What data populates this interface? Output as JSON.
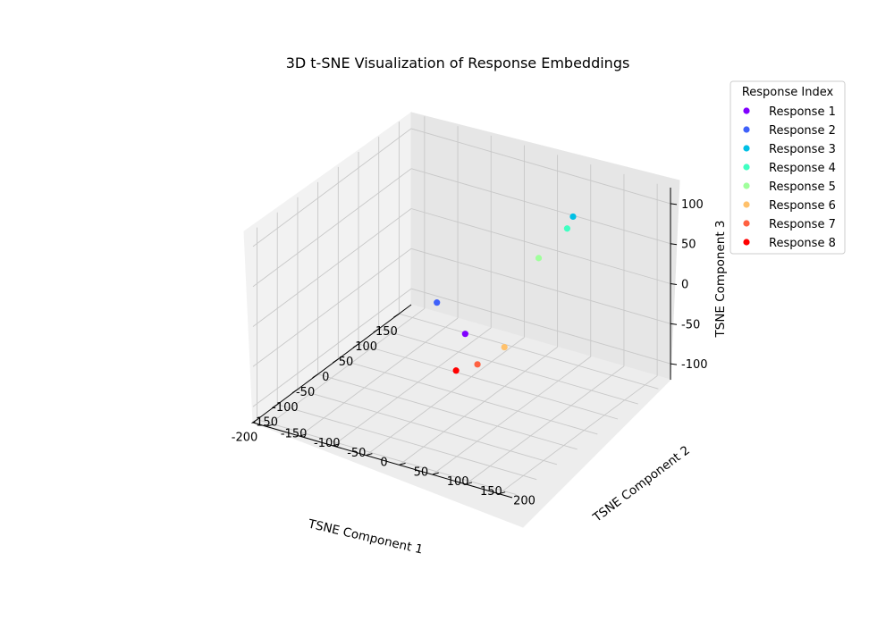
{
  "chart_data": {
    "type": "scatter",
    "projection": "3d",
    "title": "3D t-SNE Visualization of Response Embeddings",
    "xlabel": "TSNE Component 1",
    "ylabel": "TSNE Component 2",
    "zlabel": "TSNE Component 3",
    "xlim": [
      -210,
      180
    ],
    "ylim": [
      -170,
      220
    ],
    "zlim": [
      -120,
      120
    ],
    "xticks": [
      "-200",
      "-150",
      "-100",
      "-50",
      "0",
      "50",
      "100",
      "150"
    ],
    "yticks": [
      "-150",
      "-100",
      "-50",
      "0",
      "50",
      "100",
      "150",
      "200"
    ],
    "zticks": [
      "-100",
      "-50",
      "0",
      "50",
      "100"
    ],
    "grid": true,
    "legend": {
      "title": "Response Index",
      "placement": "upper-right-outside"
    },
    "series": [
      {
        "name": "Response 1",
        "color": "#8000ff",
        "x": 100,
        "y": -40,
        "z": -95
      },
      {
        "name": "Response 2",
        "color": "#3f61fa",
        "x": -150,
        "y": 70,
        "z": 65
      },
      {
        "name": "Response 3",
        "color": "#00c0e5",
        "x": 120,
        "y": 110,
        "z": 80
      },
      {
        "name": "Response 4",
        "color": "#40ffc2",
        "x": 40,
        "y": 150,
        "z": 105
      },
      {
        "name": "Response 5",
        "color": "#a0ff9c",
        "x": 150,
        "y": 40,
        "z": 0
      },
      {
        "name": "Response 6",
        "color": "#ffc16b",
        "x": 0,
        "y": 80,
        "z": -45
      },
      {
        "name": "Response 7",
        "color": "#ff6141",
        "x": -50,
        "y": 70,
        "z": -50
      },
      {
        "name": "Response 8",
        "color": "#ff0000",
        "x": -70,
        "y": 50,
        "z": -55
      }
    ]
  }
}
